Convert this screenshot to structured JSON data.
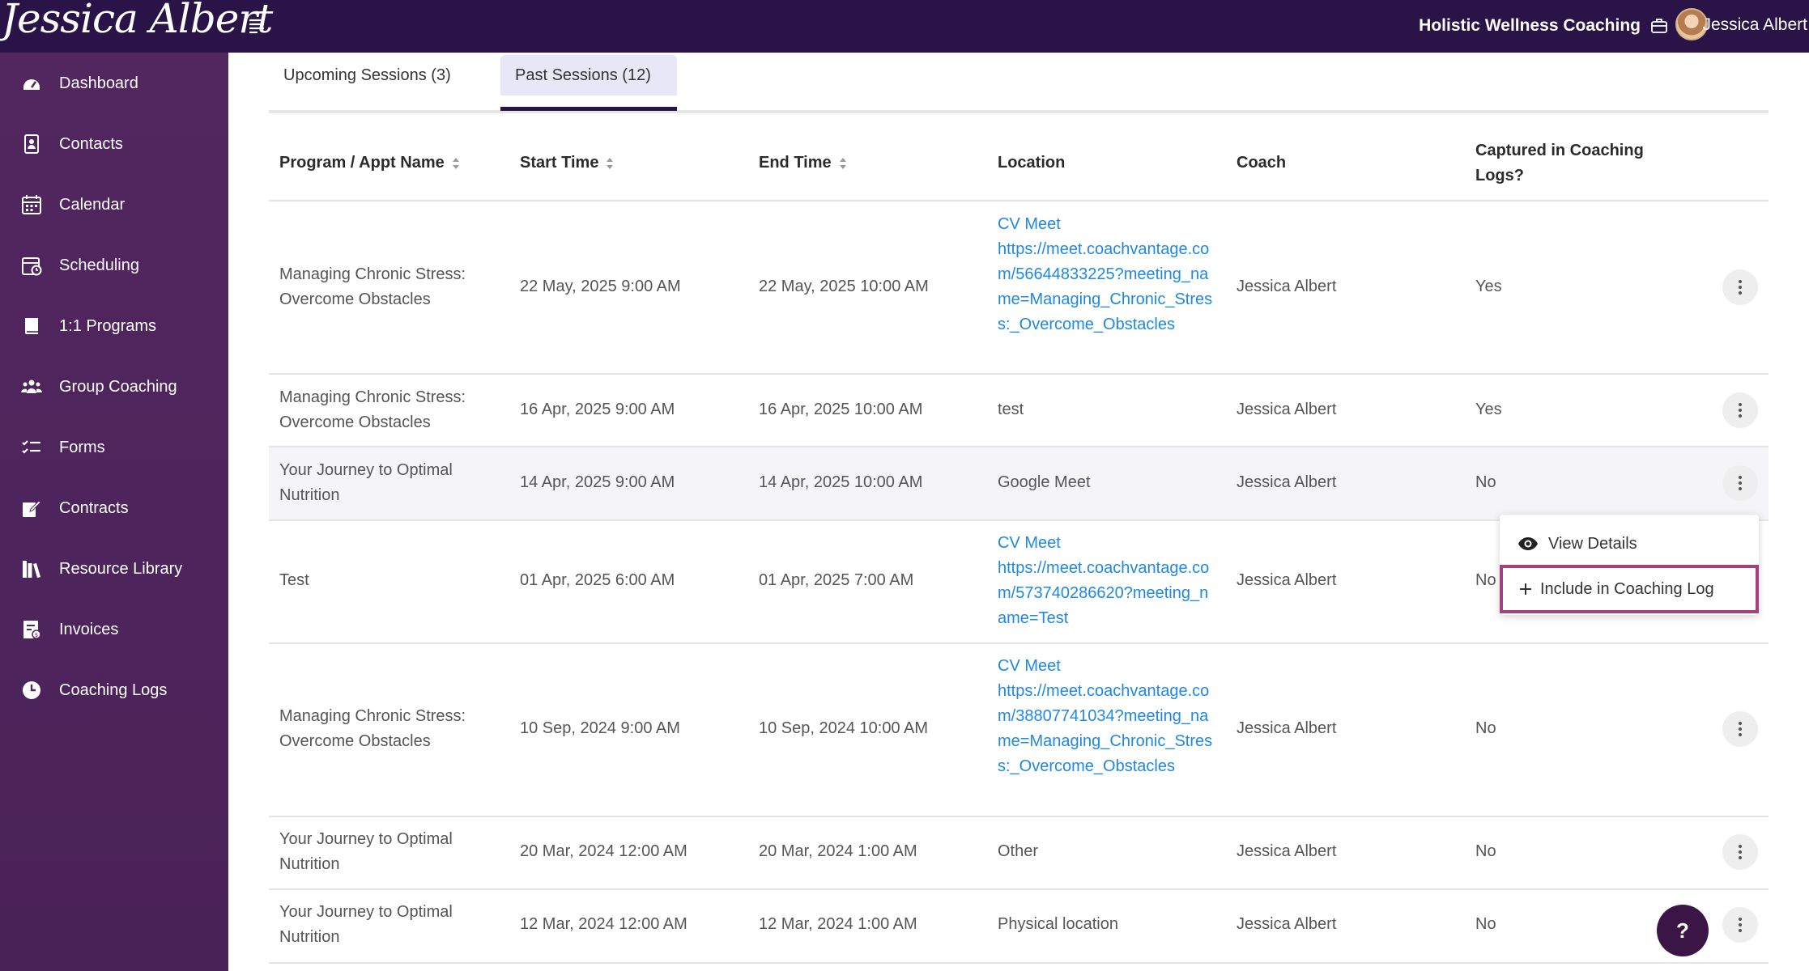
{
  "header": {
    "logo_text": "Jessica Albert",
    "brand": "Holistic Wellness Coaching",
    "username": "Jessica Albert",
    "bg_color": "#2a1447"
  },
  "sidebar": {
    "bg_color": "#52265f",
    "items": [
      {
        "label": "Dashboard",
        "icon": "dashboard-icon"
      },
      {
        "label": "Contacts",
        "icon": "contacts-icon"
      },
      {
        "label": "Calendar",
        "icon": "calendar-icon"
      },
      {
        "label": "Scheduling",
        "icon": "scheduling-icon"
      },
      {
        "label": "1:1 Programs",
        "icon": "book-icon"
      },
      {
        "label": "Group Coaching",
        "icon": "group-icon"
      },
      {
        "label": "Forms",
        "icon": "checklist-icon"
      },
      {
        "label": "Contracts",
        "icon": "contract-sign-icon"
      },
      {
        "label": "Resource Library",
        "icon": "library-icon"
      },
      {
        "label": "Invoices",
        "icon": "invoice-icon"
      },
      {
        "label": "Coaching Logs",
        "icon": "clock-icon"
      }
    ]
  },
  "tabs": [
    {
      "label": "Upcoming Sessions (3)",
      "active": false
    },
    {
      "label": "Past Sessions (12)",
      "active": true
    }
  ],
  "table": {
    "headers": [
      "Program / Appt Name",
      "Start Time",
      "End Time",
      "Location",
      "Coach",
      "Captured in Coaching Logs?"
    ],
    "rows": [
      {
        "name": "Managing Chronic Stress: Overcome Obstacles",
        "start": "22 May, 2025 9:00 AM",
        "end": "22 May, 2025 10:00 AM",
        "location_title": "CV Meet",
        "location_url": "https://meet.coachvantage.com/56644833225?meeting_name=Managing_Chronic_Stress:_Overcome_Obstacles",
        "location_text": "",
        "coach": "Jessica Albert",
        "captured": "Yes"
      },
      {
        "name": "Managing Chronic Stress: Overcome Obstacles",
        "start": "16 Apr, 2025 9:00 AM",
        "end": "16 Apr, 2025 10:00 AM",
        "location_title": "",
        "location_url": "",
        "location_text": "test",
        "coach": "Jessica Albert",
        "captured": "Yes"
      },
      {
        "name": "Your Journey to Optimal Nutrition",
        "start": "14 Apr, 2025 9:00 AM",
        "end": "14 Apr, 2025 10:00 AM",
        "location_title": "",
        "location_url": "",
        "location_text": "Google Meet",
        "coach": "Jessica Albert",
        "captured": "No"
      },
      {
        "name": "Test",
        "start": "01 Apr, 2025 6:00 AM",
        "end": "01 Apr, 2025 7:00 AM",
        "location_title": "CV Meet",
        "location_url": "https://meet.coachvantage.com/573740286620?meeting_name=Test",
        "location_text": "",
        "coach": "Jessica Albert",
        "captured": "No"
      },
      {
        "name": "Managing Chronic Stress: Overcome Obstacles",
        "start": "10 Sep, 2024 9:00 AM",
        "end": "10 Sep, 2024 10:00 AM",
        "location_title": "CV Meet",
        "location_url": "https://meet.coachvantage.com/38807741034?meeting_name=Managing_Chronic_Stress:_Overcome_Obstacles",
        "location_text": "",
        "coach": "Jessica Albert",
        "captured": "No"
      },
      {
        "name": "Your Journey to Optimal Nutrition",
        "start": "20 Mar, 2024 12:00 AM",
        "end": "20 Mar, 2024 1:00 AM",
        "location_title": "",
        "location_url": "",
        "location_text": "Other",
        "coach": "Jessica Albert",
        "captured": "No"
      },
      {
        "name": "Your Journey to Optimal Nutrition",
        "start": "12 Mar, 2024 12:00 AM",
        "end": "12 Mar, 2024 1:00 AM",
        "location_title": "",
        "location_url": "",
        "location_text": "Physical location",
        "coach": "Jessica Albert",
        "captured": "No"
      }
    ]
  },
  "row_menu": {
    "view_details": "View Details",
    "include_log": "Include in Coaching Log"
  },
  "help": {
    "label": "?"
  },
  "colors": {
    "link": "#1e88e5",
    "highlight_border": "#a4407f",
    "active_tab_bg": "#e7e7f6"
  }
}
